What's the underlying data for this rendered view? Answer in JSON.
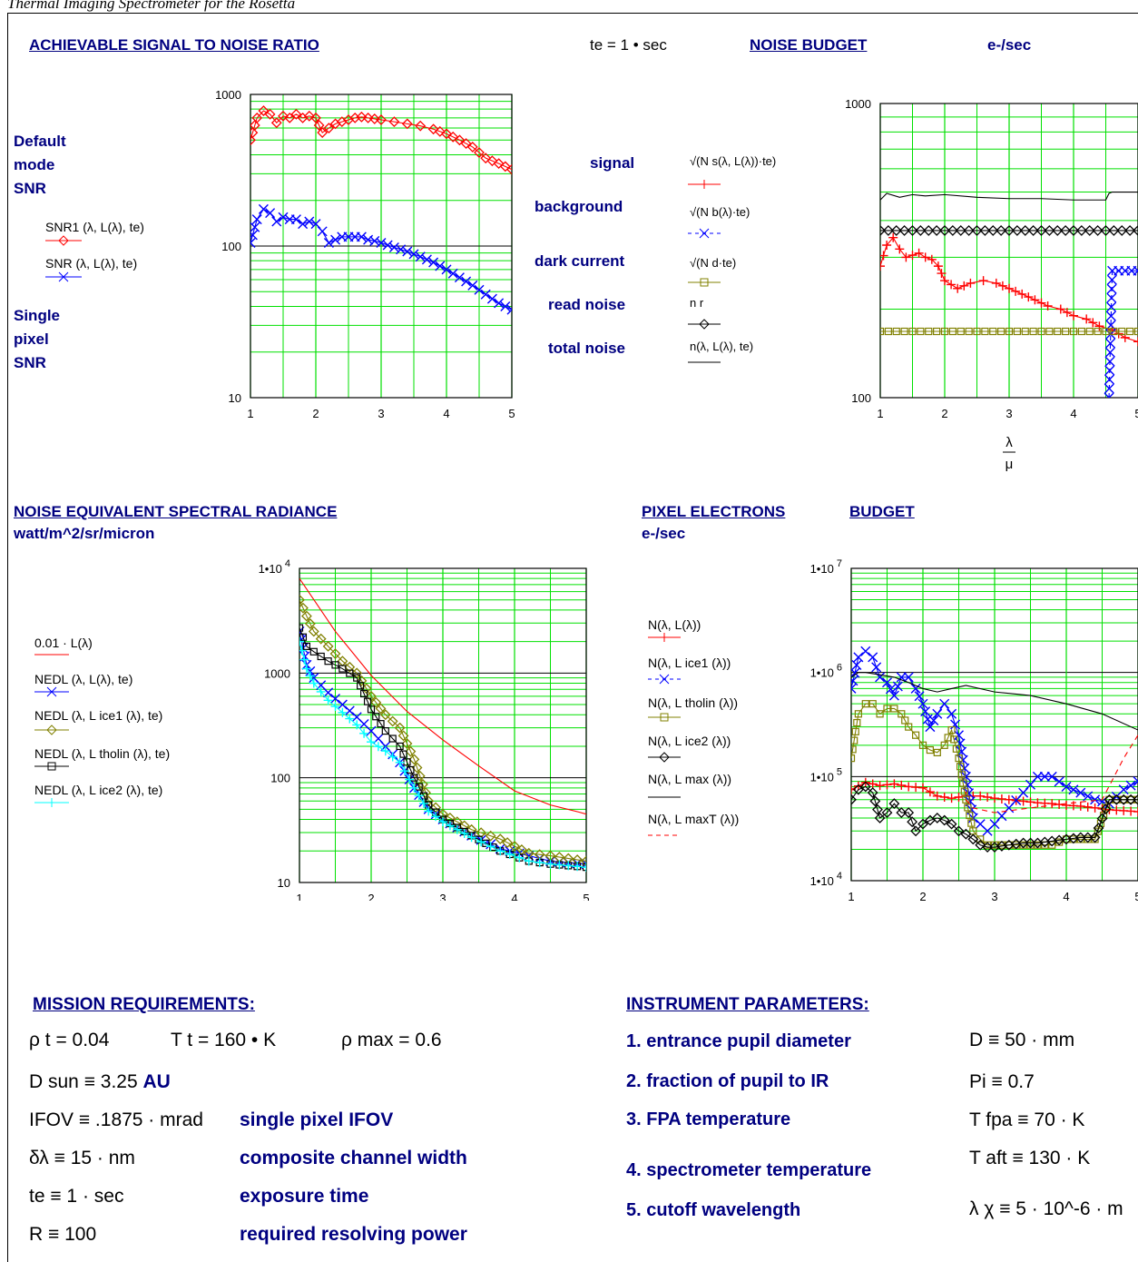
{
  "page_title": "Thermal Imaging Spectrometer for the Rosetta",
  "snr_section": {
    "header": "ACHIEVABLE SIGNAL TO NOISE RATIO",
    "te_label": "te = 1 • sec",
    "left_label_1": "Default",
    "left_label_2": "mode",
    "left_label_3": "SNR",
    "left_label_4": "Single",
    "left_label_5": "pixel",
    "left_label_6": "SNR",
    "legend": [
      "SNR1 (λ, L(λ), te)",
      "SNR (λ, L(λ), te)"
    ]
  },
  "noise_section": {
    "header_1": "NOISE BUDGET",
    "header_2": "e-/sec",
    "rows": [
      {
        "label": "signal",
        "expr": "√(N s(λ, L(λ))·te)"
      },
      {
        "label": "background",
        "expr": "√(N b(λ)·te)"
      },
      {
        "label": "dark current",
        "expr": "√(N d·te)"
      },
      {
        "label": "read noise",
        "expr": "n r"
      },
      {
        "label": "total noise",
        "expr": "n(λ, L(λ), te)"
      }
    ]
  },
  "nesr_section": {
    "header": "NOISE EQUIVALENT SPECTRAL RADIANCE",
    "units": "watt/m^2/sr/micron",
    "legend": [
      "0.01 · L(λ)",
      "NEDL (λ, L(λ), te)",
      "NEDL (λ, L ice1 (λ), te)",
      "NEDL (λ, L tholin (λ), te)",
      "NEDL (λ, L ice2 (λ), te)"
    ]
  },
  "pixel_section": {
    "header_1": "PIXEL ELECTRONS",
    "header_2": "BUDGET",
    "units": "e-/sec",
    "legend": [
      "N(λ, L(λ))",
      "N(λ, L ice1 (λ))",
      "N(λ, L tholin (λ))",
      "N(λ, L ice2 (λ))",
      "N(λ, L max (λ))",
      "N(λ, L maxT (λ))"
    ]
  },
  "axis": {
    "x_top": "λ",
    "x_bottom": "μ"
  },
  "mission": {
    "header": "MISSION REQUIREMENTS:",
    "rho_t": "ρ t = 0.04",
    "T_t": "T t = 160 • K",
    "rho_max": "ρ max = 0.6",
    "D_sun": "D sun ≡ 3.25",
    "D_sun_unit": "AU",
    "rows": [
      {
        "expr": "IFOV ≡ .1875 · mrad",
        "desc": "single pixel   IFOV"
      },
      {
        "expr": "δλ ≡ 15 · nm",
        "desc": "composite channel width"
      },
      {
        "expr": "te ≡ 1 · sec",
        "desc": "exposure   time"
      },
      {
        "expr": "R ≡ 100",
        "desc": "required resolving power"
      }
    ]
  },
  "instrument": {
    "header": "INSTRUMENT PARAMETERS:",
    "rows": [
      {
        "label": "1. entrance pupil diameter",
        "value": "D ≡ 50 · mm"
      },
      {
        "label": "2. fraction of pupil to IR",
        "value": "Pi ≡ 0.7"
      },
      {
        "label": "3. FPA temperature",
        "value": "T fpa ≡ 70 · K"
      },
      {
        "label": "4. spectrometer temperature",
        "value": "T aft ≡ 130 · K"
      },
      {
        "label": "5. cutoff wavelength",
        "value": "λ χ ≡ 5 · 10^-6 · m"
      }
    ]
  },
  "chart_data": [
    {
      "type": "line",
      "title": "ACHIEVABLE SIGNAL TO NOISE RATIO",
      "xlim": [
        1,
        5
      ],
      "ylim": [
        10,
        1000
      ],
      "yscale": "log",
      "xticks": [
        "1",
        "2",
        "3",
        "4",
        "5"
      ],
      "yticks": [
        "10",
        "100",
        "1000"
      ],
      "series": [
        {
          "name": "SNR1 (λ, L(λ), te)",
          "color": "#ff0000",
          "marker": "diamond",
          "x": [
            1.0,
            1.1,
            1.2,
            1.3,
            1.4,
            1.5,
            1.6,
            1.7,
            1.8,
            1.9,
            2.0,
            2.1,
            2.2,
            2.3,
            2.4,
            2.5,
            2.6,
            2.7,
            2.8,
            2.9,
            3.0,
            3.2,
            3.4,
            3.6,
            3.8,
            4.0,
            4.2,
            4.4,
            4.6,
            4.8,
            5.0
          ],
          "y": [
            500,
            700,
            780,
            740,
            650,
            720,
            700,
            740,
            700,
            720,
            700,
            560,
            600,
            640,
            660,
            680,
            700,
            710,
            700,
            690,
            680,
            660,
            640,
            620,
            590,
            550,
            500,
            450,
            380,
            350,
            320
          ]
        },
        {
          "name": "SNR (λ, L(λ), te)",
          "color": "#0000ff",
          "marker": "x",
          "x": [
            1.0,
            1.1,
            1.2,
            1.3,
            1.4,
            1.5,
            1.6,
            1.7,
            1.8,
            1.9,
            2.0,
            2.1,
            2.2,
            2.3,
            2.4,
            2.5,
            2.6,
            2.7,
            2.8,
            2.9,
            3.0,
            3.2,
            3.4,
            3.6,
            3.8,
            4.0,
            4.2,
            4.4,
            4.6,
            4.8,
            5.0
          ],
          "y": [
            105,
            150,
            175,
            165,
            145,
            155,
            150,
            150,
            140,
            145,
            140,
            125,
            105,
            110,
            115,
            115,
            115,
            115,
            110,
            108,
            105,
            98,
            92,
            85,
            78,
            70,
            62,
            55,
            48,
            42,
            38
          ]
        }
      ]
    },
    {
      "type": "line",
      "title": "NOISE BUDGET",
      "xlim": [
        1,
        5
      ],
      "ylim": [
        100,
        1000
      ],
      "yscale": "log",
      "xticks": [
        "1",
        "2",
        "3",
        "4",
        "5"
      ],
      "yticks": [
        "100",
        "1000"
      ],
      "series": [
        {
          "name": "signal",
          "color": "#ff0000",
          "marker": "plus",
          "x": [
            1.0,
            1.1,
            1.2,
            1.3,
            1.4,
            1.5,
            1.6,
            1.7,
            1.8,
            1.9,
            2.0,
            2.2,
            2.4,
            2.6,
            2.8,
            3.0,
            3.2,
            3.4,
            3.6,
            3.8,
            4.0,
            4.2,
            4.4,
            4.6,
            4.8,
            5.0
          ],
          "y": [
            280,
            330,
            350,
            320,
            300,
            305,
            310,
            300,
            295,
            280,
            250,
            235,
            245,
            250,
            245,
            235,
            225,
            215,
            205,
            200,
            190,
            185,
            175,
            170,
            160,
            155
          ]
        },
        {
          "name": "background",
          "color": "#0000ff",
          "marker": "x",
          "x": [
            4.55,
            4.6,
            4.7,
            4.8,
            4.9,
            5.0
          ],
          "y": [
            100,
            270,
            270,
            270,
            270,
            270
          ]
        },
        {
          "name": "dark current",
          "color": "#808000",
          "marker": "square",
          "x": [
            1.0,
            1.5,
            2.0,
            2.5,
            3.0,
            3.5,
            4.0,
            4.5,
            5.0
          ],
          "y": [
            168,
            168,
            168,
            168,
            168,
            168,
            168,
            168,
            168
          ]
        },
        {
          "name": "read noise",
          "color": "#000000",
          "marker": "diamond",
          "x": [
            1.0,
            1.5,
            2.0,
            2.5,
            3.0,
            3.5,
            4.0,
            4.5,
            5.0
          ],
          "y": [
            370,
            370,
            370,
            370,
            370,
            370,
            370,
            370,
            370
          ]
        },
        {
          "name": "total noise",
          "color": "#000000",
          "marker": "none",
          "x": [
            1.0,
            1.1,
            1.3,
            1.5,
            1.7,
            2.0,
            2.5,
            3.0,
            3.5,
            4.0,
            4.5,
            4.55,
            4.6,
            5.0
          ],
          "y": [
            470,
            495,
            480,
            490,
            485,
            490,
            480,
            475,
            475,
            470,
            470,
            495,
            500,
            500
          ]
        }
      ]
    },
    {
      "type": "line",
      "title": "NOISE EQUIVALENT SPECTRAL RADIANCE",
      "xlim": [
        1,
        5
      ],
      "ylim": [
        10,
        10000
      ],
      "yscale": "log",
      "xticks": [
        "1",
        "2",
        "3",
        "4",
        "5"
      ],
      "yticks": [
        "10",
        "100",
        "1000",
        "1•10^4"
      ],
      "series": [
        {
          "name": "0.01 · L(λ)",
          "color": "#ff0000",
          "marker": "none",
          "x": [
            1.0,
            1.5,
            2.0,
            2.5,
            3.0,
            3.5,
            4.0,
            4.5,
            4.9,
            5.0
          ],
          "y": [
            8000,
            2500,
            950,
            430,
            230,
            130,
            75,
            55,
            47,
            45
          ]
        },
        {
          "name": "NEDL (λ, L(λ), te)",
          "color": "#0000ff",
          "marker": "x",
          "x": [
            1.0,
            1.1,
            1.2,
            1.4,
            1.6,
            1.8,
            2.0,
            2.2,
            2.4,
            2.6,
            2.8,
            3.0,
            3.4,
            3.8,
            4.2,
            4.5,
            5.0
          ],
          "y": [
            2500,
            1200,
            900,
            650,
            500,
            380,
            280,
            200,
            140,
            80,
            50,
            40,
            28,
            21,
            18,
            16,
            15
          ]
        },
        {
          "name": "NEDL (λ, L ice1 (λ), te)",
          "color": "#808000",
          "marker": "diamond",
          "x": [
            1.0,
            1.1,
            1.2,
            1.4,
            1.6,
            1.8,
            2.0,
            2.2,
            2.4,
            2.6,
            2.8,
            3.0,
            3.4,
            3.8,
            4.2,
            4.5,
            5.0
          ],
          "y": [
            5000,
            3500,
            2500,
            1800,
            1300,
            1000,
            600,
            400,
            300,
            150,
            60,
            45,
            32,
            26,
            19,
            18,
            16
          ]
        },
        {
          "name": "NEDL (λ, L tholin (λ), te)",
          "color": "#000000",
          "marker": "square",
          "x": [
            1.0,
            1.1,
            1.2,
            1.4,
            1.6,
            1.8,
            2.0,
            2.2,
            2.4,
            2.6,
            2.8,
            3.0,
            3.4,
            3.8,
            4.2,
            4.5,
            5.0
          ],
          "y": [
            2700,
            1800,
            1600,
            1300,
            1100,
            900,
            450,
            280,
            200,
            100,
            55,
            40,
            28,
            20,
            16,
            15,
            14
          ]
        },
        {
          "name": "NEDL (λ, L ice2 (λ), te)",
          "color": "#00ffff",
          "marker": "plus",
          "x": [
            1.0,
            1.1,
            1.2,
            1.4,
            1.6,
            1.8,
            2.0,
            2.2,
            2.4,
            2.6,
            2.8,
            3.0,
            3.4,
            3.8,
            4.2,
            4.5,
            5.0
          ],
          "y": [
            2000,
            1100,
            800,
            550,
            420,
            320,
            220,
            180,
            140,
            80,
            48,
            38,
            27,
            20,
            16,
            15,
            14
          ]
        }
      ]
    },
    {
      "type": "line",
      "title": "PIXEL ELECTRONS BUDGET",
      "xlim": [
        1,
        5
      ],
      "ylim": [
        10000,
        10000000
      ],
      "yscale": "log",
      "xticks": [
        "1",
        "2",
        "3",
        "4",
        "5"
      ],
      "yticks": [
        "1•10^4",
        "1•10^5",
        "1•10^6",
        "1•10^7"
      ],
      "series": [
        {
          "name": "N(λ, L(λ))",
          "color": "#ff0000",
          "marker": "plus",
          "x": [
            1.0,
            1.2,
            1.4,
            1.6,
            1.8,
            2.0,
            2.2,
            2.4,
            2.6,
            2.8,
            3.0,
            3.2,
            3.4,
            3.6,
            3.8,
            4.0,
            4.2,
            4.4,
            4.6,
            4.8,
            5.0
          ],
          "y": [
            75000,
            88000,
            82000,
            85000,
            80000,
            78000,
            65000,
            62000,
            65000,
            65000,
            62000,
            60000,
            58000,
            56000,
            55000,
            53000,
            52000,
            50000,
            48000,
            47000,
            46000
          ]
        },
        {
          "name": "N(λ, L ice1 (λ))",
          "color": "#0000ff",
          "marker": "x",
          "x": [
            1.0,
            1.1,
            1.2,
            1.3,
            1.4,
            1.5,
            1.6,
            1.7,
            1.8,
            1.9,
            2.0,
            2.1,
            2.2,
            2.3,
            2.4,
            2.5,
            2.6,
            2.7,
            2.8,
            2.9,
            3.0,
            3.2,
            3.4,
            3.6,
            3.8,
            4.0,
            4.2,
            4.4,
            4.6,
            4.8,
            5.0
          ],
          "y": [
            700000,
            1400000,
            1600000,
            1400000,
            900000,
            800000,
            600000,
            900000,
            900000,
            700000,
            500000,
            300000,
            400000,
            500000,
            400000,
            250000,
            100000,
            40000,
            35000,
            30000,
            35000,
            50000,
            70000,
            100000,
            100000,
            80000,
            70000,
            60000,
            55000,
            75000,
            90000
          ]
        },
        {
          "name": "N(λ, L tholin (λ))",
          "color": "#808000",
          "marker": "square",
          "x": [
            1.0,
            1.1,
            1.2,
            1.3,
            1.4,
            1.5,
            1.6,
            1.7,
            1.8,
            1.9,
            2.0,
            2.1,
            2.2,
            2.3,
            2.4,
            2.5,
            2.6,
            2.7,
            2.8,
            2.9,
            3.0,
            3.2,
            3.4,
            3.6,
            3.8,
            4.0,
            4.2,
            4.4,
            4.6,
            4.8,
            5.0
          ],
          "y": [
            150000,
            400000,
            500000,
            500000,
            400000,
            450000,
            450000,
            400000,
            300000,
            250000,
            200000,
            180000,
            170000,
            200000,
            280000,
            150000,
            60000,
            30000,
            25000,
            22000,
            22000,
            22000,
            22000,
            22000,
            22000,
            25000,
            25000,
            25000,
            60000,
            60000,
            60000
          ]
        },
        {
          "name": "N(λ, L ice2 (λ))",
          "color": "#000000",
          "marker": "diamond",
          "x": [
            1.0,
            1.1,
            1.2,
            1.3,
            1.4,
            1.5,
            1.6,
            1.7,
            1.8,
            1.9,
            2.0,
            2.1,
            2.2,
            2.3,
            2.4,
            2.5,
            2.6,
            2.7,
            2.8,
            2.9,
            3.0,
            3.2,
            3.4,
            3.6,
            3.8,
            4.0,
            4.2,
            4.4,
            4.6,
            4.8,
            5.0
          ],
          "y": [
            60000,
            75000,
            80000,
            70000,
            40000,
            45000,
            55000,
            45000,
            45000,
            30000,
            35000,
            38000,
            40000,
            38000,
            35000,
            30000,
            28000,
            25000,
            22000,
            21000,
            21000,
            22000,
            23000,
            23000,
            24000,
            25000,
            26000,
            26000,
            60000,
            60000,
            60000
          ]
        },
        {
          "name": "N(λ, L max (λ))",
          "color": "#000000",
          "marker": "none",
          "x": [
            1.0,
            1.1,
            1.2,
            1.4,
            1.6,
            1.8,
            2.0,
            2.2,
            2.4,
            2.6,
            3.0,
            3.5,
            4.0,
            4.5,
            5.0
          ],
          "y": [
            900000,
            1000000,
            1000000,
            950000,
            900000,
            800000,
            700000,
            650000,
            700000,
            750000,
            650000,
            600000,
            500000,
            400000,
            280000
          ]
        },
        {
          "name": "N(λ, L maxT (λ))",
          "color": "#ff0000",
          "marker": "dash",
          "x": [
            2.6,
            2.7,
            3.0,
            3.5,
            4.0,
            4.5,
            4.8,
            5.0
          ],
          "y": [
            60000,
            50000,
            45000,
            50000,
            55000,
            60000,
            150000,
            250000
          ]
        }
      ]
    }
  ]
}
